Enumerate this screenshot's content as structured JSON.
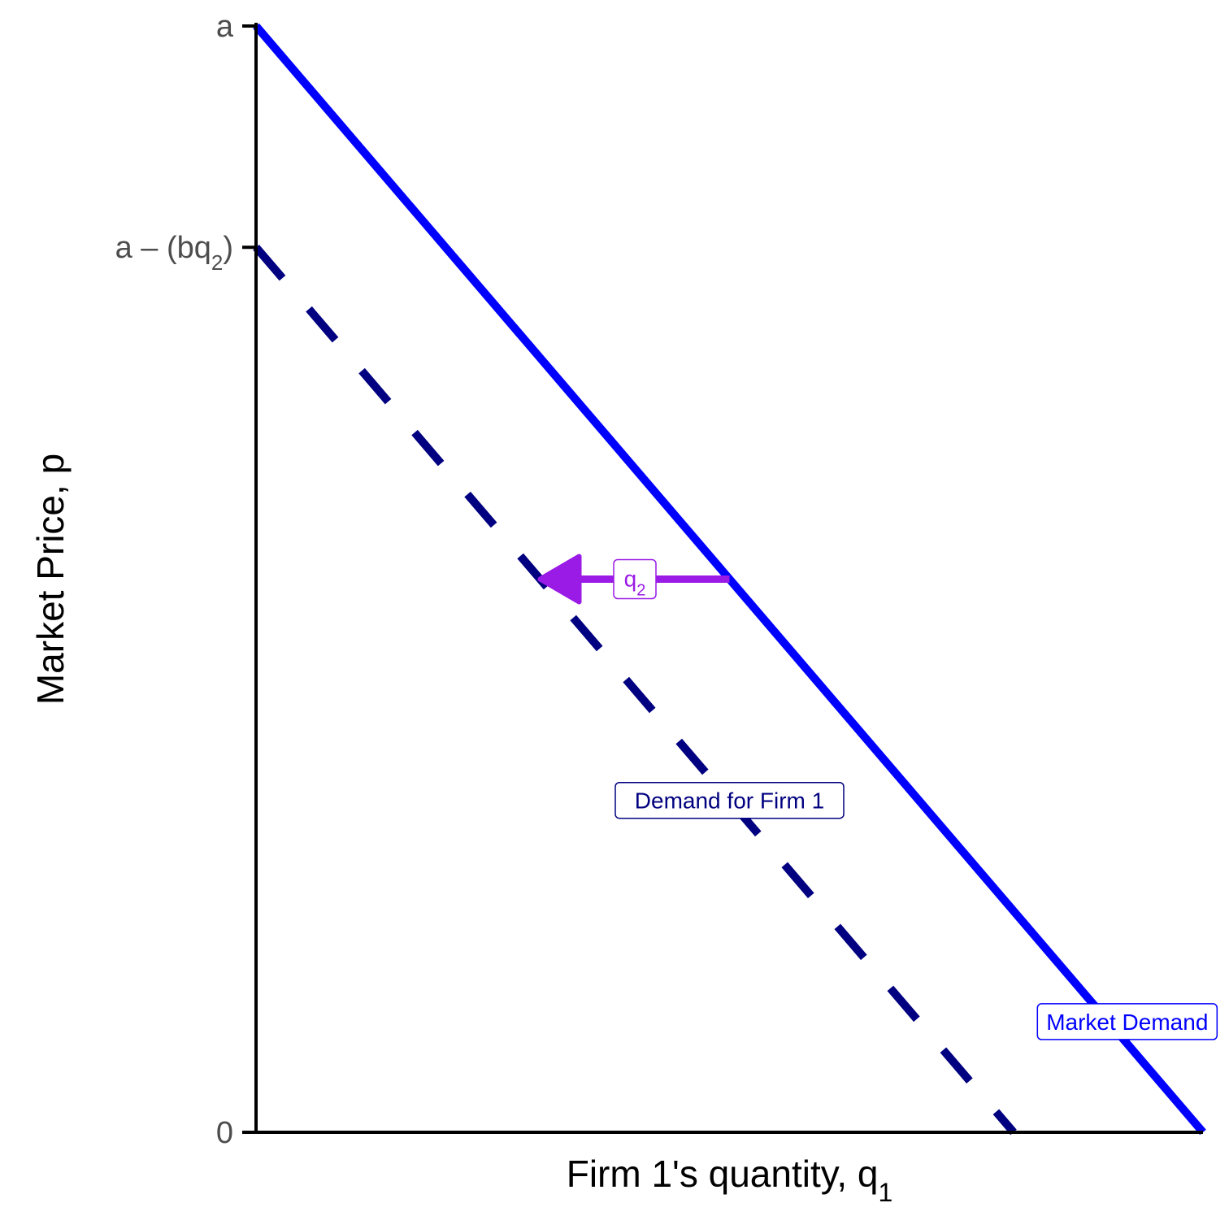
{
  "chart_data": {
    "type": "line",
    "title": "",
    "xlabel": "Firm 1's quantity, q",
    "xlabel_subscript": "1",
    "ylabel": "Market Price, p",
    "xlim": [
      0,
      10
    ],
    "ylim": [
      0,
      10
    ],
    "grid": false,
    "y_ticks": [
      {
        "value": 10,
        "label": "a"
      },
      {
        "value": 8,
        "label": "a – (bq",
        "subscript": "2",
        "suffix": ")"
      },
      {
        "value": 0,
        "label": "0"
      }
    ],
    "series": [
      {
        "name": "Market Demand",
        "style": "solid",
        "color": "#0000ff",
        "x": [
          0,
          10
        ],
        "y": [
          10,
          0
        ]
      },
      {
        "name": "Demand for Firm 1",
        "style": "dashed",
        "color": "#000080",
        "x": [
          0,
          8
        ],
        "y": [
          8,
          0
        ]
      }
    ],
    "annotations": [
      {
        "type": "arrow",
        "color": "#9a1ae6",
        "from": [
          5,
          5
        ],
        "to": [
          3,
          5
        ],
        "label": "q",
        "label_subscript": "2",
        "label_x": 4,
        "label_y": 5
      }
    ],
    "labels": [
      {
        "text": "Market Demand",
        "x": 9.2,
        "y": 1,
        "color": "#0000ff"
      },
      {
        "text": "Demand for Firm 1",
        "x": 5,
        "y": 3,
        "color": "#000080"
      }
    ]
  }
}
